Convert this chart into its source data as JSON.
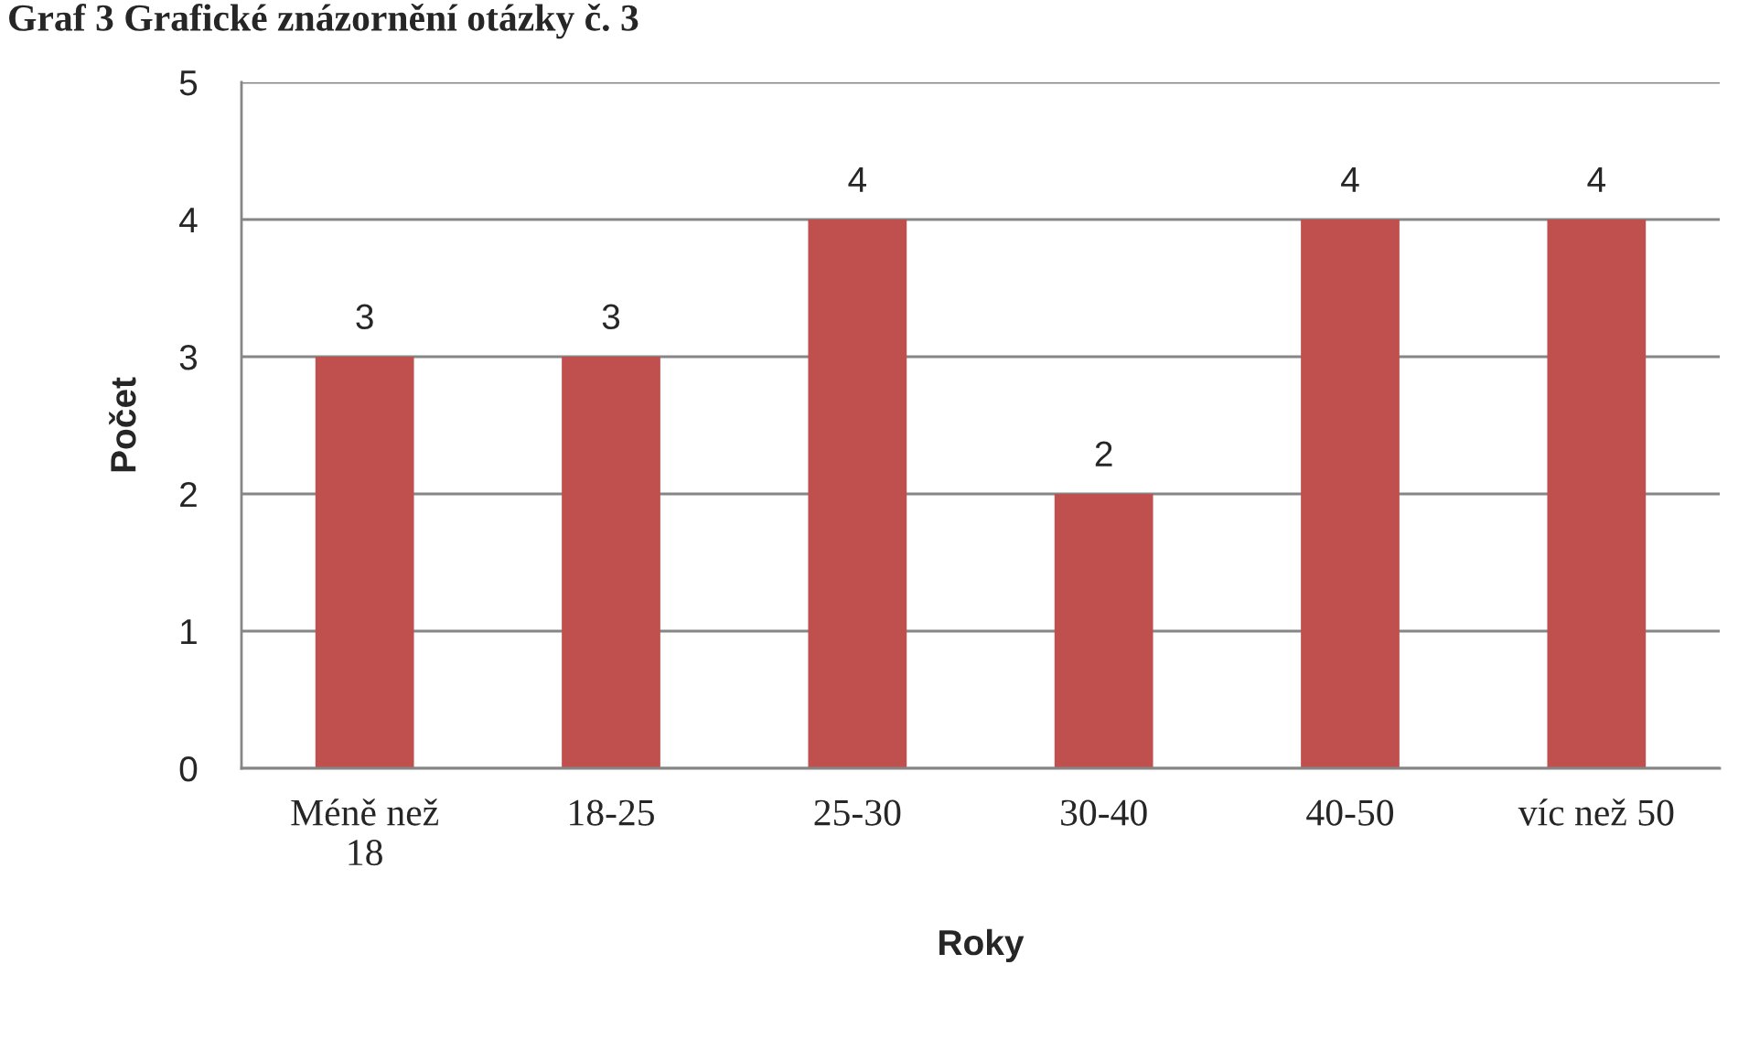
{
  "chart_data": {
    "type": "bar",
    "title": "Graf 3 Grafické znázornění otázky č. 3",
    "categories": [
      "Méně než\n18",
      "18-25",
      "25-30",
      "30-40",
      "40-50",
      "víc než 50"
    ],
    "values": [
      3,
      3,
      4,
      2,
      4,
      4
    ],
    "color": "#c0504d",
    "xlabel": "Roky",
    "ylabel": "Počet",
    "ylim": [
      0,
      5
    ],
    "yticks": [
      0,
      1,
      2,
      3,
      4,
      5
    ],
    "grid": "y",
    "data_labels": true
  }
}
